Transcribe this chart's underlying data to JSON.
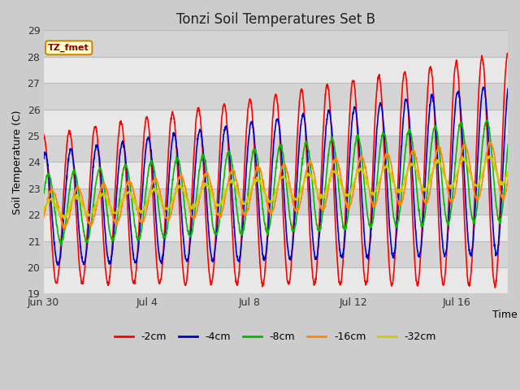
{
  "title": "Tonzi Soil Temperatures Set B",
  "xlabel": "Time",
  "ylabel": "Soil Temperature (C)",
  "ylim": [
    19.0,
    29.0
  ],
  "yticks": [
    19.0,
    20.0,
    21.0,
    22.0,
    23.0,
    24.0,
    25.0,
    26.0,
    27.0,
    28.0,
    29.0
  ],
  "xtick_labels": [
    "Jun 30",
    "Jul 4",
    "Jul 8",
    "Jul 12",
    "Jul 16"
  ],
  "xtick_positions": [
    0,
    4,
    8,
    12,
    16
  ],
  "annotation": "TZ_fmet",
  "annotation_color": "#880000",
  "annotation_bg": "#ffffcc",
  "annotation_border": "#cc8800",
  "line_colors": [
    "#ff0000",
    "#0000cc",
    "#00bb00",
    "#ff8800",
    "#cccc00"
  ],
  "line_labels": [
    "-2cm",
    "-4cm",
    "-8cm",
    "-16cm",
    "-32cm"
  ],
  "bg_color": "#dddddd",
  "plot_bg": "#d8d8d8",
  "band_color": "#e8e8e8",
  "grid_color": "#cccccc",
  "n_days": 19,
  "points_per_day": 96,
  "base_temp": 22.2,
  "trend_slope": 0.085,
  "amplitudes_start": [
    2.8,
    2.1,
    1.3,
    0.7,
    0.35
  ],
  "amplitudes_end": [
    4.5,
    3.3,
    2.0,
    1.1,
    0.55
  ],
  "phases": [
    0.0,
    0.06,
    0.18,
    0.32,
    0.28
  ],
  "min_offsets": [
    0.0,
    0.1,
    0.2,
    0.1,
    0.15
  ]
}
